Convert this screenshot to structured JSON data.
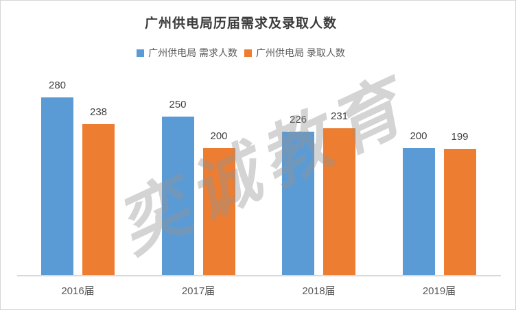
{
  "title": "广州供电局历届需求及录取人数",
  "watermark": "奕诚教育",
  "colors": {
    "demand": "#5B9BD5",
    "admit": "#ED7D31",
    "axis_line": "#D9D9D9",
    "value_label": "#404040",
    "axis_label": "#595959"
  },
  "chart_data": {
    "type": "bar",
    "title": "广州供电局历届需求及录取人数",
    "categories": [
      "2016届",
      "2017届",
      "2018届",
      "2019届"
    ],
    "series": [
      {
        "name": "广州供电局 需求人数",
        "color": "#5B9BD5",
        "values": [
          280,
          250,
          226,
          200
        ]
      },
      {
        "name": "广州供电局 录取人数",
        "color": "#ED7D31",
        "values": [
          238,
          200,
          231,
          199
        ]
      }
    ],
    "xlabel": "",
    "ylabel": "",
    "ylim": [
      0,
      302
    ],
    "grid": false,
    "legend_position": "top",
    "data_labels": true
  }
}
